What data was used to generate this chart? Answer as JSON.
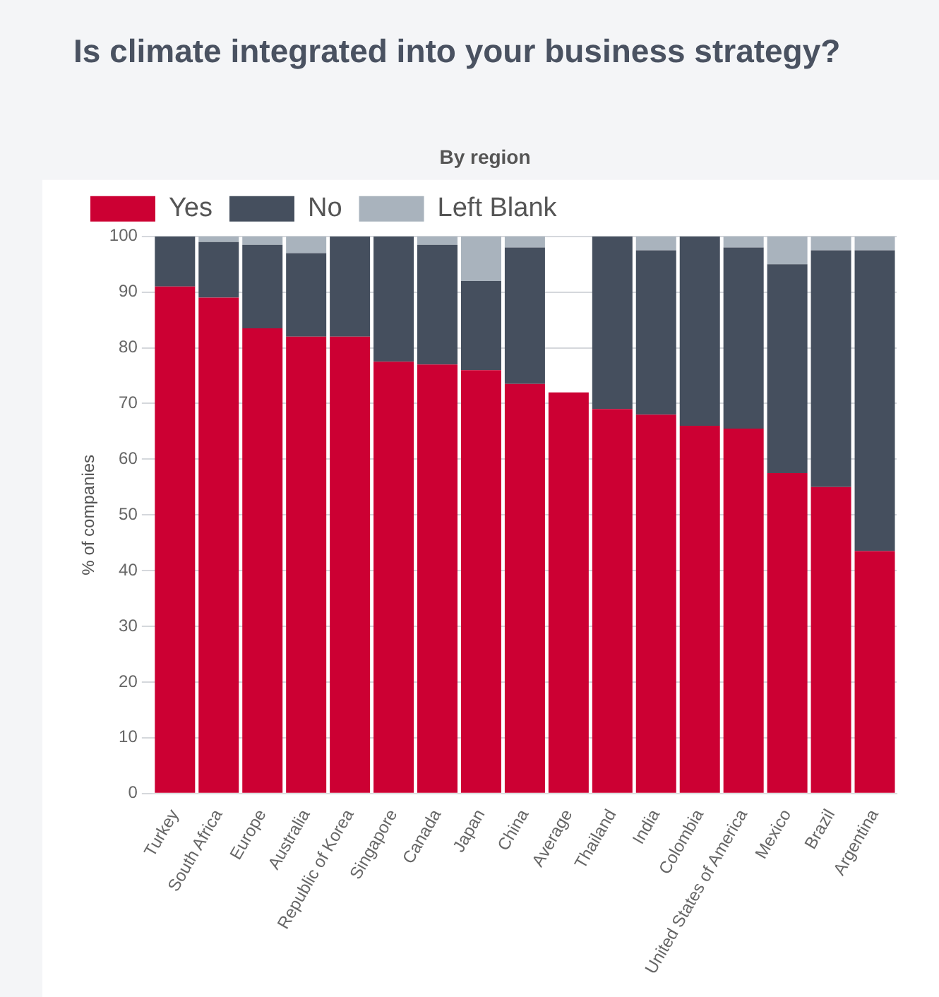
{
  "chart_data": {
    "type": "bar",
    "title": "Is climate integrated into your business strategy?",
    "subtitle": "By region",
    "ylabel": "% of companies",
    "categories": [
      "Turkey",
      "South Africa",
      "Europe",
      "Australia",
      "Republic of Korea",
      "Singapore",
      "Canada",
      "Japan",
      "China",
      "Average",
      "Thailand",
      "India",
      "Colombia",
      "United States of America",
      "Mexico",
      "Brazil",
      "Argentina"
    ],
    "series": [
      {
        "name": "Yes",
        "color": "#cc0033",
        "values": [
          91,
          89,
          83.5,
          82,
          82,
          77.5,
          77,
          76,
          73.5,
          72,
          69,
          68,
          66,
          65.5,
          57.5,
          55,
          43.5
        ]
      },
      {
        "name": "No",
        "color": "#454f5e",
        "values": [
          9,
          10,
          15,
          15,
          18,
          22.5,
          21.5,
          16,
          24.5,
          null,
          31,
          29.5,
          34,
          32.5,
          37.5,
          42.5,
          54
        ]
      },
      {
        "name": "Left Blank",
        "color": "#a9b3bd",
        "values": [
          0,
          1,
          1.5,
          3,
          0,
          0,
          1.5,
          8,
          2,
          null,
          0,
          2.5,
          0,
          2,
          5,
          2.5,
          2.5
        ]
      }
    ],
    "stacked": true,
    "ylim": [
      0,
      100
    ],
    "yticks": [
      0,
      10,
      20,
      30,
      40,
      50,
      60,
      70,
      80,
      90,
      100
    ],
    "grid": "y",
    "legend": "top left"
  }
}
